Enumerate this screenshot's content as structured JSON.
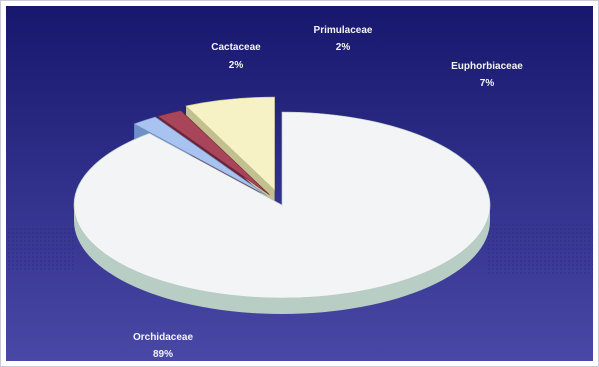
{
  "chart_data": {
    "type": "pie",
    "style": "3d-exploded",
    "title": "",
    "slices": [
      {
        "label": "Orchidaceae",
        "value": 89,
        "value_label": "89%",
        "color": "#f2f4f6",
        "side_color": "#b8cdc4"
      },
      {
        "label": "Cactaceae",
        "value": 2,
        "value_label": "2%",
        "color": "#a9c3f0",
        "side_color": "#6f8fc9"
      },
      {
        "label": "Primulaceae",
        "value": 2,
        "value_label": "2%",
        "color": "#a8455a",
        "side_color": "#6e2434"
      },
      {
        "label": "Euphorbiaceae",
        "value": 7,
        "value_label": "7%",
        "color": "#f6f2c6",
        "side_color": "#c3c090"
      }
    ],
    "background": {
      "top": "#17176e",
      "bottom": "#4a48a6"
    },
    "legend": "none"
  }
}
